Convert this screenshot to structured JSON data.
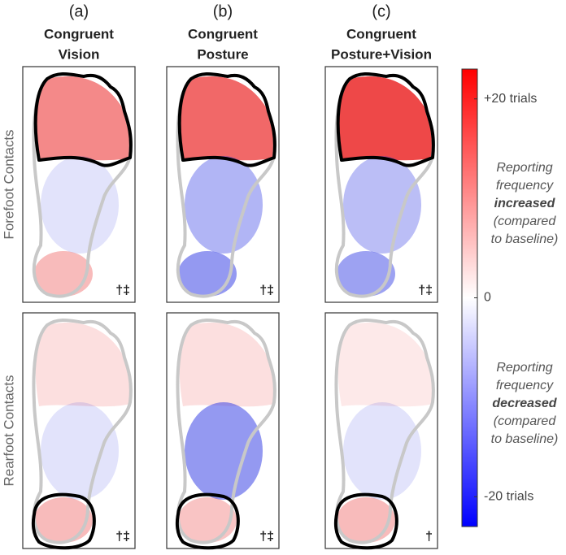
{
  "figure": {
    "columns": [
      {
        "letter": "(a)",
        "title": [
          "Congruent",
          "Vision"
        ],
        "markers": [
          "†‡",
          "†‡"
        ]
      },
      {
        "letter": "(b)",
        "title": [
          "Congruent",
          "Posture"
        ],
        "markers": [
          "†‡",
          "†‡"
        ]
      },
      {
        "letter": "(c)",
        "title": [
          "Congruent",
          "Posture+Vision"
        ],
        "markers": [
          "†‡",
          "†"
        ]
      }
    ],
    "rows": [
      "Forefoot Contacts",
      "Rearfoot Contacts"
    ],
    "colorbar": {
      "lim": [
        -23,
        23
      ],
      "ticks": [
        {
          "value": 20,
          "label": "+20 trials"
        },
        0,
        {
          "value": -20,
          "label": "-20 trials"
        }
      ],
      "increased_note": {
        "before": [
          "Reporting",
          "frequency"
        ],
        "emphasis": "increased",
        "after": [
          "(compared",
          "to baseline)"
        ]
      },
      "decreased_note": {
        "before": [
          "Reporting",
          "frequency"
        ],
        "emphasis": "decreased",
        "after": [
          "(compared",
          "to baseline)"
        ]
      }
    }
  }
}
